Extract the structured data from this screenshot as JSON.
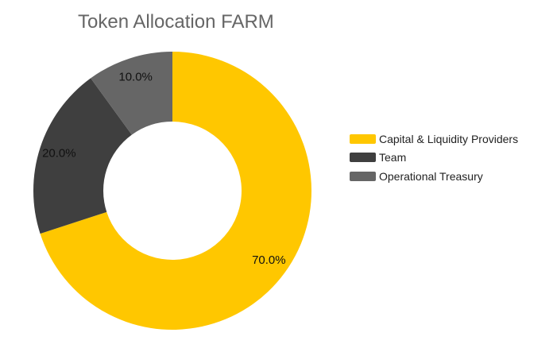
{
  "chart_data": {
    "type": "pie",
    "donut": true,
    "title": "Token Allocation FARM",
    "categories": [
      "Capital & Liquidity Providers",
      "Team",
      "Operational Treasury"
    ],
    "values": [
      70.0,
      20.0,
      10.0
    ],
    "data_labels": [
      "70.0%",
      "20.0%",
      "10.0%"
    ],
    "colors": [
      "#FFC700",
      "#3F3F3F",
      "#666666"
    ],
    "legend_position": "right"
  }
}
